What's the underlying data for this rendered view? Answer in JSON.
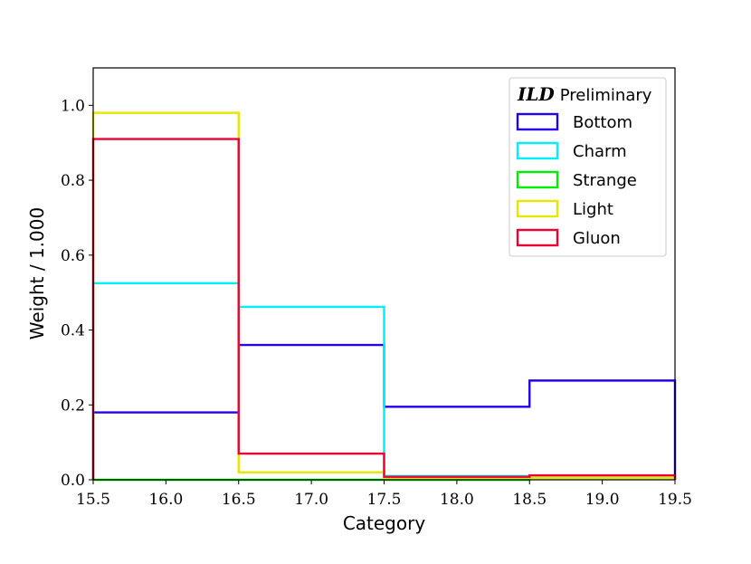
{
  "chart_data": {
    "type": "step-histogram",
    "xlabel": "Category",
    "ylabel": "Weight / 1.000",
    "xlim": [
      15.5,
      19.5
    ],
    "ylim": [
      0.0,
      1.1
    ],
    "xticks": [
      "15.5",
      "16.0",
      "16.5",
      "17.0",
      "17.5",
      "18.0",
      "18.5",
      "19.0",
      "19.5"
    ],
    "yticks": [
      "0.0",
      "0.2",
      "0.4",
      "0.6",
      "0.8",
      "1.0"
    ],
    "bin_edges": [
      15.5,
      16.5,
      17.5,
      18.5,
      19.5
    ],
    "legend": {
      "title_em": "ILD",
      "title_rest": "Preliminary",
      "placement": "top-right"
    },
    "series": [
      {
        "name": "Bottom",
        "color": "#2200ee",
        "values": [
          0.18,
          0.36,
          0.195,
          0.265
        ]
      },
      {
        "name": "Charm",
        "color": "#00eeff",
        "values": [
          0.525,
          0.462,
          0.01,
          0.005
        ]
      },
      {
        "name": "Strange",
        "color": "#00ee00",
        "values": [
          0.0,
          0.0,
          0.0,
          0.005
        ]
      },
      {
        "name": "Light",
        "color": "#e6e600",
        "values": [
          0.98,
          0.02,
          0.005,
          0.005
        ]
      },
      {
        "name": "Gluon",
        "color": "#ee0033",
        "values": [
          0.91,
          0.07,
          0.008,
          0.012
        ]
      }
    ]
  }
}
